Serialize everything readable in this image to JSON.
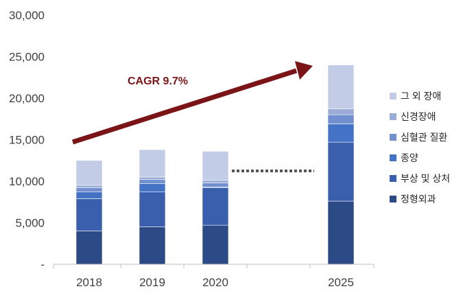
{
  "chart_data": {
    "type": "bar",
    "stacked": true,
    "categories": [
      "2018",
      "2019",
      "2020",
      "2025"
    ],
    "ylim": [
      0,
      30000
    ],
    "y_ticks": [
      "-",
      "5,000",
      "10,000",
      "15,000",
      "20,000",
      "25,000",
      "30,000"
    ],
    "grid": false,
    "legend_position": "right",
    "series": [
      {
        "name": "정형외과",
        "color": "#2c4a86",
        "values": [
          4000,
          4500,
          4700,
          7600
        ]
      },
      {
        "name": "부상 및 상처",
        "color": "#3a5fad",
        "values": [
          3900,
          4200,
          4500,
          7100
        ]
      },
      {
        "name": "종양",
        "color": "#4472c4",
        "values": [
          800,
          1000,
          100,
          2200
        ]
      },
      {
        "name": "심혈관 질환",
        "color": "#7290cf",
        "values": [
          500,
          500,
          500,
          1100
        ]
      },
      {
        "name": "신경장애",
        "color": "#9aabd8",
        "values": [
          300,
          300,
          300,
          700
        ]
      },
      {
        "name": "그 외 장애",
        "color": "#c3cce6",
        "values": [
          3000,
          3300,
          3500,
          5300
        ]
      }
    ],
    "annotations": [
      {
        "text": "CAGR 9.7%",
        "color": "#7b1416"
      }
    ]
  }
}
